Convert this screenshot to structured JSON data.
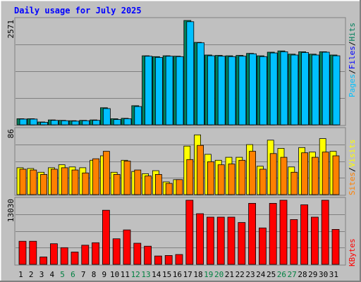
{
  "chart_data": {
    "type": "bar",
    "title": "Daily usage for July 2025",
    "categories": [
      "1",
      "2",
      "3",
      "4",
      "5",
      "6",
      "7",
      "8",
      "9",
      "10",
      "11",
      "12",
      "13",
      "14",
      "15",
      "16",
      "17",
      "18",
      "19",
      "20",
      "21",
      "22",
      "23",
      "24",
      "25",
      "26",
      "27",
      "28",
      "29",
      "30",
      "31"
    ],
    "weekend_days": [
      "5",
      "6",
      "12",
      "13",
      "19",
      "20",
      "26",
      "27"
    ],
    "panels": [
      {
        "name": "pages-files-hits",
        "ymax_label": "2571",
        "ymax": 2571,
        "series": [
          {
            "name": "Hits",
            "color": "#00805c",
            "values": [
              150,
              150,
              70,
              120,
              110,
              100,
              110,
              120,
              420,
              150,
              160,
              470,
              1700,
              1680,
              1700,
              1690,
              2571,
              2030,
              1720,
              1710,
              1700,
              1710,
              1760,
              1700,
              1790,
              1820,
              1740,
              1800,
              1740,
              1800,
              1720
            ]
          },
          {
            "name": "Files",
            "color": "#0000ff",
            "values": [
              0,
              0,
              0,
              0,
              0,
              0,
              0,
              0,
              0,
              0,
              0,
              0,
              0,
              0,
              0,
              0,
              0,
              0,
              0,
              0,
              0,
              0,
              0,
              0,
              0,
              0,
              0,
              0,
              0,
              0,
              0
            ]
          },
          {
            "name": "Pages",
            "color": "#00c0ff",
            "values": [
              140,
              140,
              60,
              110,
              100,
              90,
              100,
              110,
              400,
              130,
              150,
              450,
              1690,
              1660,
              1690,
              1680,
              2540,
              2020,
              1700,
              1690,
              1680,
              1690,
              1750,
              1680,
              1770,
              1800,
              1720,
              1780,
              1720,
              1790,
              1700
            ]
          }
        ]
      },
      {
        "name": "visits-sites",
        "ymax_label": "86",
        "ymax": 86,
        "series": [
          {
            "name": "Visits",
            "color": "#ffff00",
            "values": [
              36,
              35,
              30,
              36,
              40,
              37,
              36,
              46,
              52,
              30,
              46,
              31,
              28,
              32,
              17,
              20,
              65,
              80,
              54,
              46,
              50,
              50,
              67,
              38,
              73,
              62,
              37,
              63,
              57,
              75,
              58
            ]
          },
          {
            "name": "Sites",
            "color": "#ff8000",
            "values": [
              34,
              33,
              27,
              34,
              36,
              33,
              29,
              48,
              58,
              27,
              45,
              33,
              25,
              27,
              15,
              20,
              47,
              66,
              44,
              40,
              41,
              46,
              58,
              34,
              55,
              50,
              30,
              56,
              50,
              57,
              52
            ]
          }
        ]
      },
      {
        "name": "kbytes",
        "ymax_label": "13030",
        "ymax": 13030,
        "series": [
          {
            "name": "KBytes",
            "color": "#ff0000",
            "values": [
              4700,
              4700,
              1500,
              4200,
              3400,
              2500,
              3900,
              4400,
              11000,
              5200,
              7000,
              4300,
              3700,
              1700,
              1800,
              2000,
              13030,
              10300,
              9600,
              9600,
              9600,
              8500,
              12400,
              7400,
              12400,
              13030,
              9100,
              12100,
              9600,
              13030,
              7100
            ]
          }
        ]
      }
    ]
  }
}
